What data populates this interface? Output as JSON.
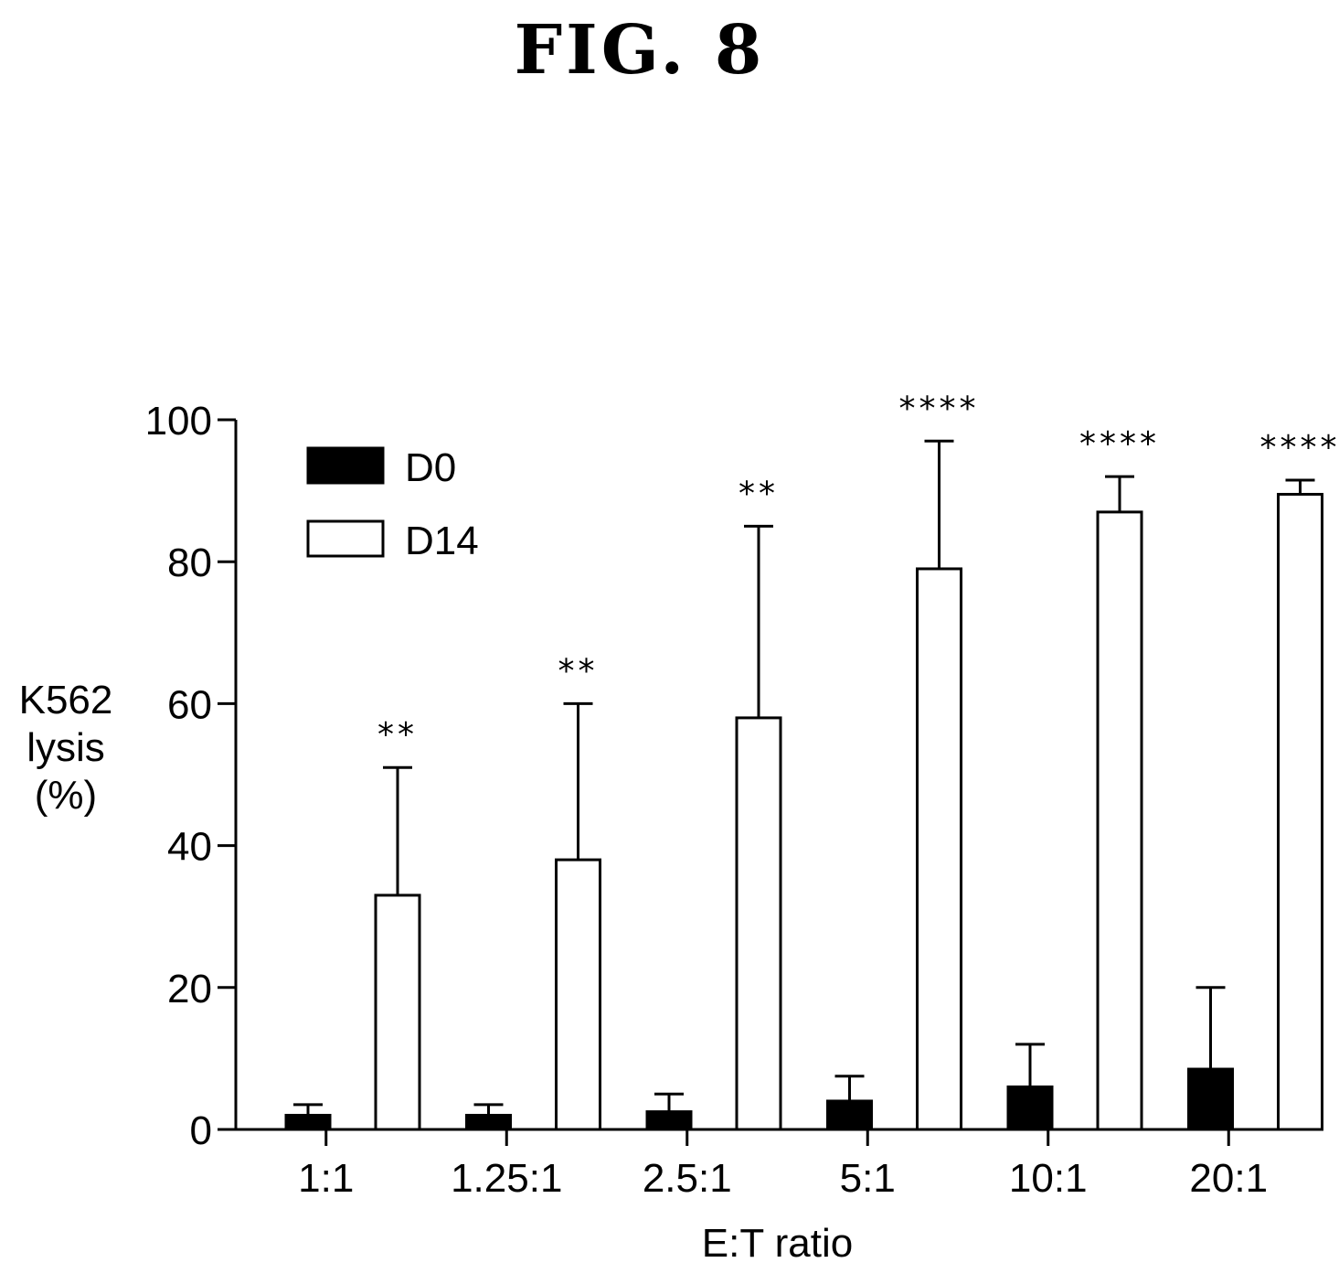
{
  "figure_label": "FIG. 8",
  "chart_data": {
    "type": "bar",
    "title": "",
    "xlabel": "E:T ratio",
    "ylabel_lines": [
      "K562",
      "lysis",
      "(%)"
    ],
    "categories": [
      "1:1",
      "1.25:1",
      "2.5:1",
      "5:1",
      "10:1",
      "20:1"
    ],
    "ylim": [
      0,
      100
    ],
    "yticks": [
      0,
      20,
      40,
      60,
      80,
      100
    ],
    "legend_position": "top-left",
    "grid": false,
    "series": [
      {
        "name": "D0",
        "color": "#000000",
        "values": [
          2,
          2,
          2.5,
          4,
          6,
          8.5
        ],
        "errors": [
          1.5,
          1.5,
          2.5,
          3.5,
          6,
          11.5
        ]
      },
      {
        "name": "D14",
        "color": "#ffffff",
        "values": [
          33,
          38,
          58,
          79,
          87,
          89.5
        ],
        "errors": [
          18,
          22,
          27,
          18,
          5,
          2
        ]
      }
    ],
    "significance": [
      "**",
      "**",
      "**",
      "****",
      "****",
      "****"
    ]
  }
}
